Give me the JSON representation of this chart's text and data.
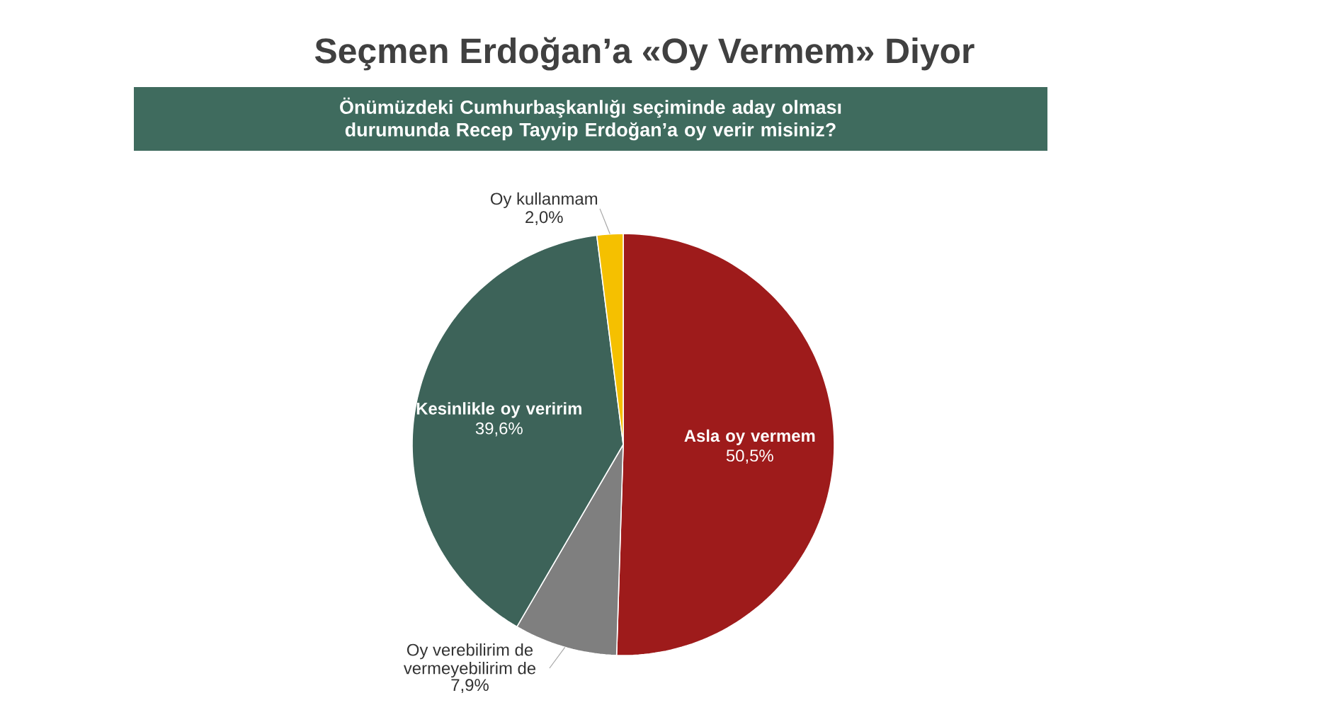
{
  "chart_data": {
    "type": "pie",
    "title": "Seçmen Erdoğan’a «Oy Vermem» Diyor",
    "subtitle": "Önümüzdeki Cumhurbaşkanlığı seçiminde aday olması durumunda Recep Tayyip Erdoğan’a oy verir misiniz?",
    "categories": [
      "Asla oy vermem",
      "Oy verebilirim de vermeyebilirim de",
      "Kesinlikle oy veririm",
      "Oy kullanmam"
    ],
    "values": [
      50.5,
      7.9,
      39.6,
      2.0
    ],
    "value_labels": [
      "50,5%",
      "7,9%",
      "39,6%",
      "2,0%"
    ],
    "colors": [
      "#9e1b1b",
      "#7f7f7f",
      "#3d6359",
      "#f5c000"
    ]
  }
}
